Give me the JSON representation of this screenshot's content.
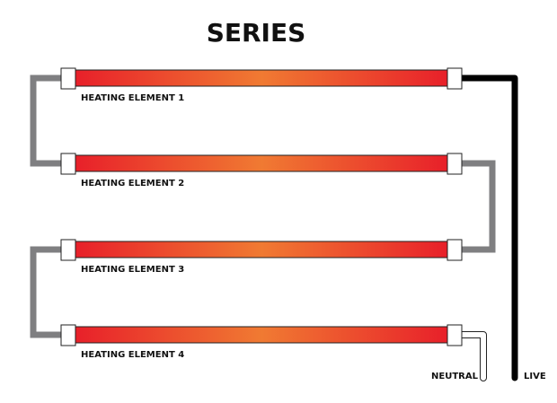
{
  "title": "SERIES",
  "elements": [
    {
      "label": "HEATING ELEMENT 1"
    },
    {
      "label": "HEATING ELEMENT 2"
    },
    {
      "label": "HEATING ELEMENT 3"
    },
    {
      "label": "HEATING ELEMENT 4"
    }
  ],
  "terminals": {
    "neutral": "NEUTRAL",
    "live": "LIVE"
  },
  "colors": {
    "element_edge": "#e8202a",
    "element_center": "#f07a32",
    "link_wire": "#7f7f81",
    "live_wire": "#000000",
    "neutral_wire": "#ffffff"
  }
}
